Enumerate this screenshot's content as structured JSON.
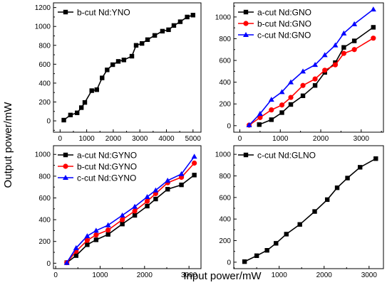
{
  "figure": {
    "xlabel": "Input power/mW",
    "ylabel": "Output power/mW"
  },
  "chart_data": [
    {
      "type": "line",
      "panel": "top-left",
      "xlim": [
        -250,
        5300
      ],
      "ylim": [
        -120,
        1250
      ],
      "xticks": [
        0,
        1000,
        2000,
        3000,
        4000,
        5000
      ],
      "yticks": [
        0,
        200,
        400,
        600,
        800,
        1000,
        1200
      ],
      "legend": "top-left",
      "series": [
        {
          "name": "b-cut Nd:YNO",
          "color": "#000000",
          "marker": "square",
          "x": [
            140,
            390,
            640,
            800,
            930,
            1190,
            1380,
            1580,
            1770,
            1980,
            2190,
            2400,
            2700,
            2860,
            3080,
            3290,
            3560,
            3850,
            4080,
            4280,
            4520,
            4780,
            5000
          ],
          "y": [
            8,
            62,
            85,
            140,
            195,
            320,
            330,
            455,
            540,
            595,
            630,
            645,
            685,
            800,
            820,
            860,
            905,
            950,
            965,
            1010,
            1050,
            1100,
            1120
          ]
        }
      ]
    },
    {
      "type": "line",
      "panel": "top-right",
      "xlim": [
        -150,
        3550
      ],
      "ylim": [
        -60,
        1130
      ],
      "xticks": [
        0,
        1000,
        2000,
        3000
      ],
      "yticks": [
        0,
        200,
        400,
        600,
        800,
        1000
      ],
      "legend": "top-left",
      "series": [
        {
          "name": "a-cut Nd:GNO",
          "color": "#000000",
          "marker": "square",
          "x": [
            480,
            780,
            1040,
            1260,
            1560,
            1860,
            2100,
            2360,
            2570,
            2830,
            3300
          ],
          "y": [
            10,
            55,
            120,
            195,
            275,
            370,
            490,
            580,
            720,
            780,
            905
          ]
        },
        {
          "name": "b-cut Nd:GNO",
          "color": "#ff0000",
          "marker": "circle",
          "x": [
            230,
            500,
            780,
            1040,
            1260,
            1560,
            1860,
            2100,
            2360,
            2570,
            2830,
            3300
          ],
          "y": [
            5,
            75,
            145,
            190,
            260,
            370,
            430,
            510,
            560,
            665,
            700,
            805
          ]
        },
        {
          "name": "c-cut Nd:GNO",
          "color": "#0000ff",
          "marker": "triangle",
          "x": [
            230,
            500,
            780,
            1040,
            1260,
            1560,
            1860,
            2100,
            2360,
            2570,
            2830,
            3300
          ],
          "y": [
            5,
            110,
            240,
            310,
            400,
            500,
            560,
            650,
            740,
            850,
            935,
            1070
          ]
        }
      ]
    },
    {
      "type": "line",
      "panel": "bottom-left",
      "xlim": [
        -50,
        3270
      ],
      "ylim": [
        -50,
        1080
      ],
      "xticks": [
        0,
        1000,
        2000,
        3000
      ],
      "yticks": [
        0,
        200,
        400,
        600,
        800,
        1000
      ],
      "legend": "top-left",
      "series": [
        {
          "name": "a-cut Nd:GYNO",
          "color": "#000000",
          "marker": "square",
          "x": [
            250,
            460,
            710,
            910,
            1180,
            1500,
            1780,
            2060,
            2250,
            2520,
            2830,
            3120
          ],
          "y": [
            5,
            70,
            170,
            215,
            265,
            360,
            440,
            525,
            590,
            680,
            720,
            810
          ]
        },
        {
          "name": "b-cut Nd:GYNO",
          "color": "#ff0000",
          "marker": "circle",
          "x": [
            250,
            460,
            710,
            910,
            1180,
            1500,
            1780,
            2060,
            2250,
            2520,
            2830,
            3120
          ],
          "y": [
            5,
            110,
            210,
            260,
            305,
            400,
            480,
            570,
            640,
            740,
            790,
            920
          ]
        },
        {
          "name": "c-cut Nd:GYNO",
          "color": "#0000ff",
          "marker": "triangle",
          "x": [
            250,
            460,
            710,
            910,
            1180,
            1500,
            1780,
            2060,
            2250,
            2520,
            2830,
            3120
          ],
          "y": [
            5,
            140,
            250,
            300,
            350,
            440,
            520,
            610,
            670,
            760,
            820,
            980
          ]
        }
      ]
    },
    {
      "type": "line",
      "panel": "bottom-right",
      "xlim": [
        -10,
        3320
      ],
      "ylim": [
        -60,
        1080
      ],
      "xticks": [
        1000,
        2000,
        3000
      ],
      "yticks": [
        0,
        200,
        400,
        600,
        800,
        1000
      ],
      "legend": "top-left",
      "series": [
        {
          "name": "c-cut Nd:GLNO",
          "color": "#000000",
          "marker": "square",
          "x": [
            230,
            500,
            730,
            930,
            1160,
            1460,
            1790,
            2070,
            2290,
            2520,
            2800,
            3150
          ],
          "y": [
            5,
            60,
            110,
            175,
            260,
            350,
            470,
            580,
            690,
            780,
            880,
            960
          ]
        }
      ]
    }
  ]
}
